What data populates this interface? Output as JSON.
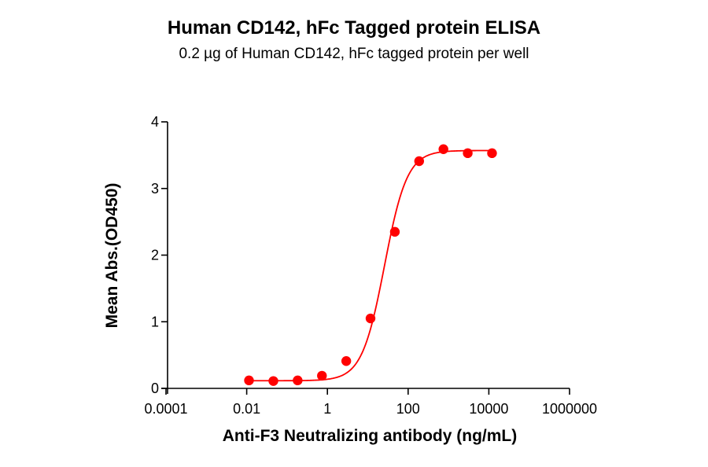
{
  "chart_data": {
    "type": "scatter",
    "title": "Human CD142, hFc Tagged protein ELISA",
    "subtitle": "0.2 µg of Human CD142, hFc tagged protein per well",
    "xlabel": "Anti-F3 Neutralizing antibody (ng/mL)",
    "ylabel": "Mean Abs.(OD450)",
    "xscale": "log",
    "xlim": [
      0.0001,
      1000000
    ],
    "ylim": [
      0,
      4
    ],
    "xticks": [
      "0.0001",
      "0.01",
      "1",
      "100",
      "10000",
      "1000000"
    ],
    "yticks": [
      "0",
      "1",
      "2",
      "3",
      "4"
    ],
    "grid": false,
    "legend": null,
    "series": [
      {
        "name": "Anti-F3 Neutralizing antibody",
        "color": "#ff0000",
        "marker": "circle",
        "x": [
          0.0114,
          0.0458,
          0.183,
          0.732,
          2.93,
          11.7,
          46.9,
          187.5,
          750,
          3000,
          12000
        ],
        "y": [
          0.12,
          0.11,
          0.12,
          0.19,
          0.41,
          1.05,
          2.35,
          3.41,
          3.59,
          3.53,
          3.53
        ],
        "fit": {
          "model": "4PL",
          "bottom": 0.115,
          "top": 3.57,
          "ec50": 26,
          "hill": 1.55
        }
      }
    ]
  }
}
